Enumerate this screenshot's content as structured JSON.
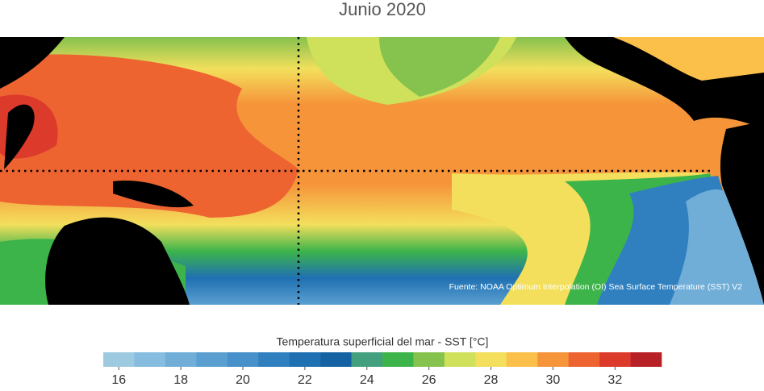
{
  "title": "Junio 2020",
  "source": "Fuente: NOAA Optimum Interpolation (OI) Sea Surface Temperature (SST) V2",
  "colorbar": {
    "label": "Temperatura superficial del mar - SST  [°C]",
    "bins": [
      15.5,
      16.5,
      17.5,
      18.5,
      19.5,
      20.5,
      21.5,
      22.5,
      23.5,
      24.5,
      25.5,
      26.5,
      27.5,
      28.5,
      29.5,
      30.5,
      31.5,
      32.5,
      33.5
    ],
    "colors": [
      "#9ecae1",
      "#86bcdf",
      "#70aed8",
      "#5b9fd1",
      "#4790c9",
      "#3080c0",
      "#1f70b2",
      "#1562a2",
      "#43a07f",
      "#3db44a",
      "#86c24e",
      "#cfe05a",
      "#f3df5c",
      "#fbc04a",
      "#f6943a",
      "#ed6431",
      "#dc3a2a",
      "#b72025"
    ],
    "ticks": [
      16,
      18,
      20,
      22,
      24,
      26,
      28,
      30,
      32
    ]
  }
}
